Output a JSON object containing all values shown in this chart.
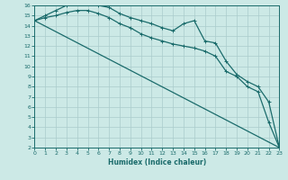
{
  "xlabel": "Humidex (Indice chaleur)",
  "bg_color": "#cce9e6",
  "line_color": "#1a6b6b",
  "grid_color": "#aacccc",
  "xlim": [
    0,
    23
  ],
  "ylim": [
    2,
    16
  ],
  "xticks": [
    0,
    1,
    2,
    3,
    4,
    5,
    6,
    7,
    8,
    9,
    10,
    11,
    12,
    13,
    14,
    15,
    16,
    17,
    18,
    19,
    20,
    21,
    22,
    23
  ],
  "yticks": [
    2,
    3,
    4,
    5,
    6,
    7,
    8,
    9,
    10,
    11,
    12,
    13,
    14,
    15,
    16
  ],
  "line1_x": [
    0,
    1,
    2,
    3,
    4,
    5,
    6,
    7,
    8,
    9,
    10,
    11,
    12,
    13,
    14,
    15,
    16,
    17,
    18,
    19,
    20,
    21,
    22,
    23
  ],
  "line1_y": [
    14.5,
    15.0,
    15.5,
    16.0,
    16.2,
    16.2,
    16.0,
    15.8,
    15.2,
    14.8,
    14.5,
    14.2,
    13.8,
    13.5,
    14.2,
    14.5,
    12.5,
    12.3,
    10.5,
    9.2,
    8.5,
    8.0,
    6.5,
    2.0
  ],
  "line2_x": [
    0,
    23
  ],
  "line2_y": [
    14.5,
    2.0
  ],
  "line3_x": [
    0,
    1,
    2,
    3,
    4,
    5,
    6,
    7,
    8,
    9,
    10,
    11,
    12,
    13,
    14,
    15,
    16,
    17,
    18,
    19,
    20,
    21,
    22,
    23
  ],
  "line3_y": [
    14.5,
    14.8,
    15.0,
    15.3,
    15.5,
    15.5,
    15.2,
    14.8,
    14.2,
    13.8,
    13.2,
    12.8,
    12.5,
    12.2,
    12.0,
    11.8,
    11.5,
    11.0,
    9.5,
    9.0,
    8.0,
    7.5,
    4.5,
    2.0
  ]
}
